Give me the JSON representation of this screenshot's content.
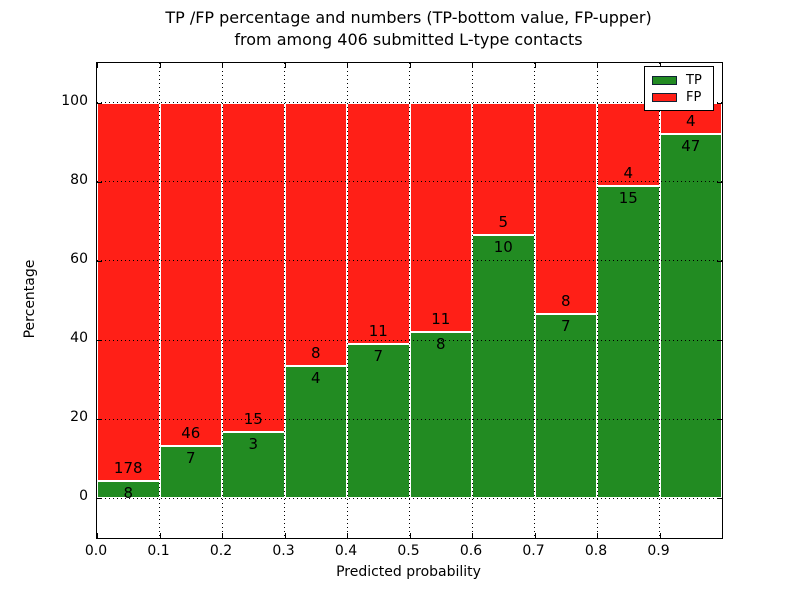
{
  "title": {
    "line1": "TP /FP percentage and numbers (TP-bottom value, FP-upper)",
    "line2": "from among 406 submitted L-type contacts"
  },
  "axes": {
    "xlabel": "Predicted probability",
    "ylabel": "Percentage",
    "x_tick_labels": [
      "0.0",
      "0.1",
      "0.2",
      "0.3",
      "0.4",
      "0.5",
      "0.6",
      "0.7",
      "0.8",
      "0.9"
    ],
    "y_tick_labels": [
      "0",
      "20",
      "40",
      "60",
      "80",
      "100"
    ]
  },
  "legend": {
    "items": [
      {
        "label": "TP",
        "color": "#228b22"
      },
      {
        "label": "FP",
        "color": "#ff1f17"
      }
    ]
  },
  "colors": {
    "tp": "#228b22",
    "fp": "#ff1f17",
    "grid": "#000000",
    "background": "#ffffff"
  },
  "chart_data": {
    "type": "bar",
    "stacked": true,
    "normalized_to_percent": true,
    "title": "TP /FP percentage and numbers (TP-bottom value, FP-upper) from among 406 submitted L-type contacts",
    "xlabel": "Predicted probability",
    "ylabel": "Percentage",
    "bin_edges": [
      0.0,
      0.1,
      0.2,
      0.3,
      0.4,
      0.5,
      0.6,
      0.7,
      0.8,
      0.9,
      1.0
    ],
    "series": [
      {
        "name": "TP",
        "color": "#228b22",
        "counts": [
          8,
          7,
          3,
          4,
          7,
          8,
          10,
          7,
          15,
          47
        ]
      },
      {
        "name": "FP",
        "color": "#ff1f17",
        "counts": [
          178,
          46,
          15,
          8,
          11,
          11,
          5,
          8,
          4,
          4
        ]
      }
    ],
    "tp_percent": [
      4.3,
      13.21,
      16.67,
      33.33,
      38.89,
      42.11,
      66.67,
      46.67,
      78.95,
      92.16
    ],
    "total_contacts": 406,
    "xlim": [
      0.0,
      1.0
    ],
    "ylim": [
      -10,
      110
    ],
    "y_ticks": [
      0,
      20,
      40,
      60,
      80,
      100
    ],
    "grid": true,
    "legend_position": "upper right"
  }
}
